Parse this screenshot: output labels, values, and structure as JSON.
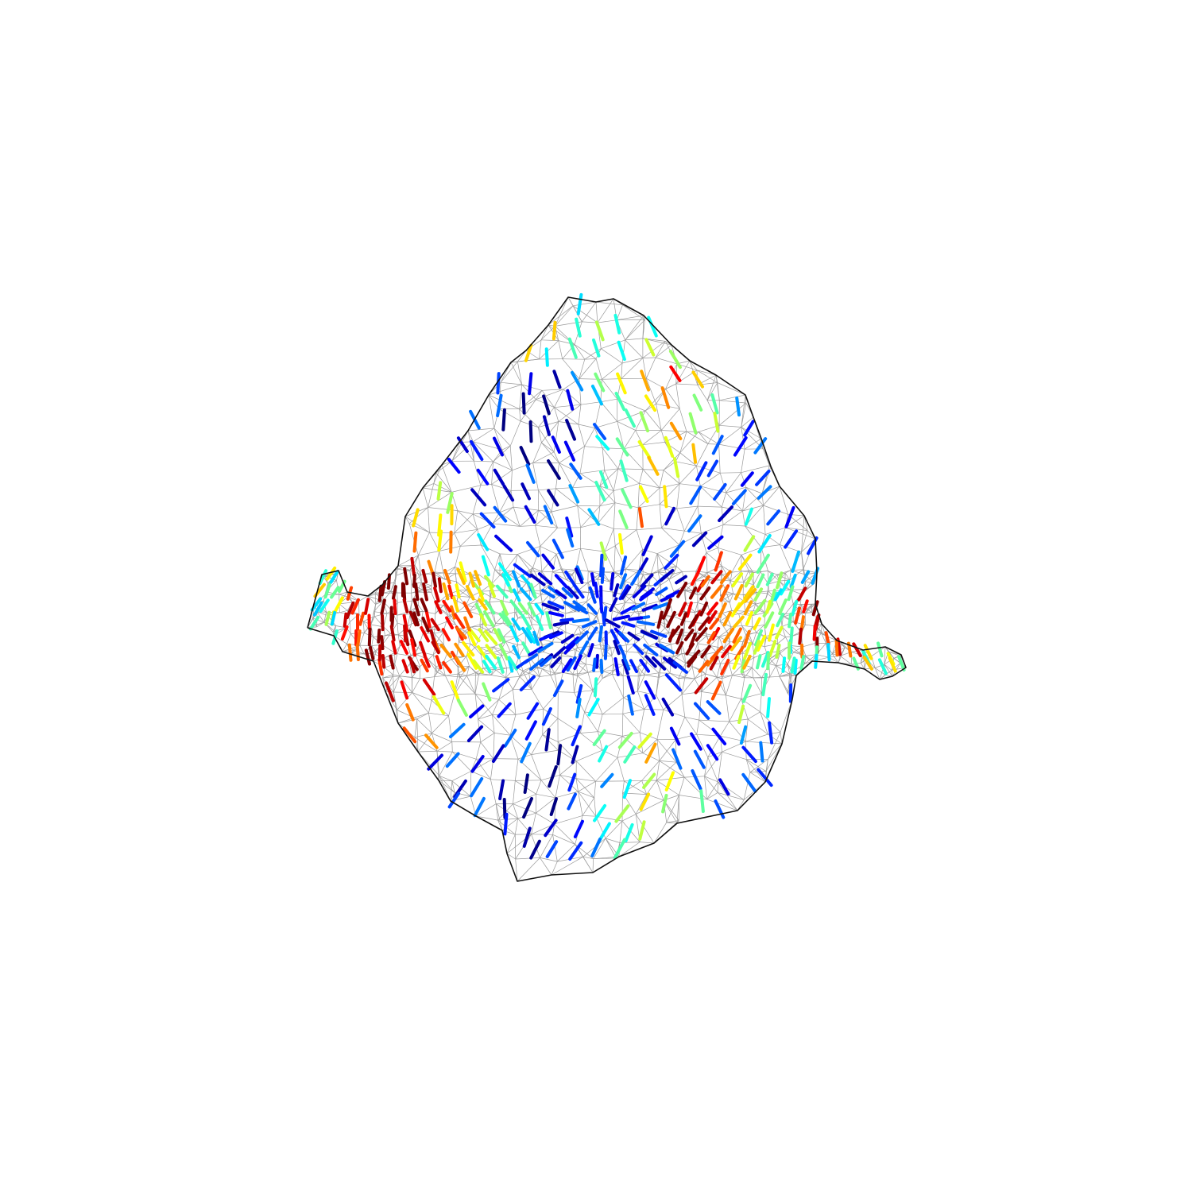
{
  "figure": {
    "kind": "triangle-mesh-direction-field",
    "background": "#ffffff",
    "mesh_edge_color": "#9a9a9a",
    "boundary_color": "#111111",
    "colormap": "jet",
    "colormap_stops": [
      "#00007f",
      "#0000ff",
      "#007fff",
      "#00ffff",
      "#7fff7f",
      "#ffff00",
      "#ff7f00",
      "#ff0000",
      "#7f0000"
    ],
    "axes_visible": false
  }
}
